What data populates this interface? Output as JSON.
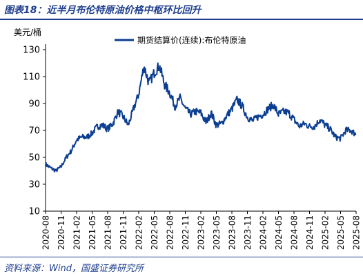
{
  "figure": {
    "title": "图表18：近半月布伦特原油价格中枢环比回升",
    "source": "资料来源：Wind，国盛证券研究所"
  },
  "chart_data": {
    "type": "line",
    "ylabel": "美元/桶",
    "xlabel": "",
    "ylim": [
      10,
      130
    ],
    "yticks": [
      10,
      30,
      50,
      70,
      90,
      110,
      130
    ],
    "xlim": [
      "2020-08",
      "2025-08"
    ],
    "x_tick_labels": [
      "2020-08",
      "2020-11",
      "2021-02",
      "2021-05",
      "2021-08",
      "2021-11",
      "2022-02",
      "2022-05",
      "2022-08",
      "2022-11",
      "2023-02",
      "2023-05",
      "2023-08",
      "2023-11",
      "2024-02",
      "2024-05",
      "2024-08",
      "2024-11",
      "2025-02",
      "2025-05",
      "2025-08"
    ],
    "legend_position": "top-center",
    "grid": false,
    "color": "#0b3d91",
    "series": [
      {
        "name": "期货结算价(连续):布伦特原油",
        "x": [
          "2020-08",
          "2020-09",
          "2020-10",
          "2020-11",
          "2020-12",
          "2021-01",
          "2021-02",
          "2021-03",
          "2021-04",
          "2021-05",
          "2021-06",
          "2021-07",
          "2021-08",
          "2021-09",
          "2021-10",
          "2021-11",
          "2021-12",
          "2022-01",
          "2022-02",
          "2022-03",
          "2022-04",
          "2022-05",
          "2022-06",
          "2022-07",
          "2022-08",
          "2022-09",
          "2022-10",
          "2022-11",
          "2022-12",
          "2023-01",
          "2023-02",
          "2023-03",
          "2023-04",
          "2023-05",
          "2023-06",
          "2023-07",
          "2023-08",
          "2023-09",
          "2023-10",
          "2023-11",
          "2023-12",
          "2024-01",
          "2024-02",
          "2024-03",
          "2024-04",
          "2024-05",
          "2024-06",
          "2024-07",
          "2024-08",
          "2024-09",
          "2024-10",
          "2024-11",
          "2024-12",
          "2025-01",
          "2025-02",
          "2025-03",
          "2025-04",
          "2025-05",
          "2025-06",
          "2025-07",
          "2025-08"
        ],
        "values": [
          45,
          42,
          40,
          43,
          50,
          55,
          63,
          65,
          65,
          68,
          73,
          74,
          71,
          75,
          84,
          80,
          74,
          86,
          97,
          118,
          105,
          113,
          118,
          104,
          98,
          88,
          94,
          86,
          82,
          84,
          83,
          76,
          83,
          74,
          75,
          81,
          86,
          93,
          88,
          80,
          77,
          80,
          82,
          86,
          89,
          82,
          84,
          83,
          78,
          73,
          75,
          73,
          73,
          78,
          74,
          71,
          65,
          64,
          70,
          70,
          67
        ]
      }
    ]
  }
}
